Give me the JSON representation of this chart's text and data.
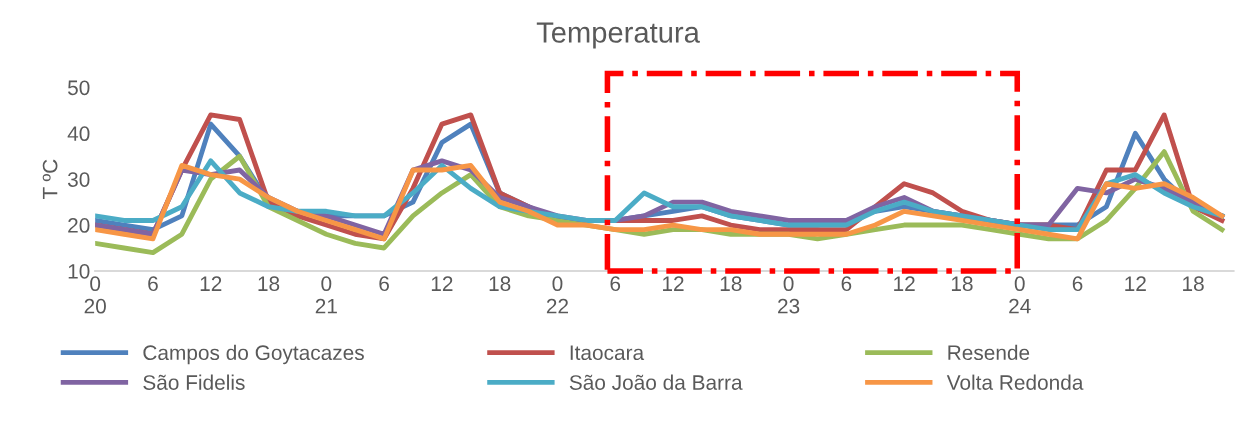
{
  "chart_data": {
    "type": "line",
    "title": "Temperatura",
    "ylabel": "T ºC",
    "categories": [
      "0\n20",
      null,
      "6",
      null,
      "12",
      null,
      "18",
      null,
      "0\n21",
      null,
      "6",
      null,
      "12",
      null,
      "18",
      null,
      "0\n22",
      null,
      "6",
      null,
      "12",
      null,
      "18",
      null,
      "0\n23",
      null,
      "6",
      null,
      "12",
      null,
      "18",
      null,
      "0\n24",
      null,
      "6",
      null,
      "12",
      null,
      "18",
      null
    ],
    "series": [
      {
        "name": "Campos do Goytacazes",
        "color": "#4f81bd",
        "values": [
          21,
          20,
          19,
          22,
          42,
          35,
          25,
          23,
          22,
          22,
          22,
          25,
          38,
          42,
          27,
          24,
          21,
          21,
          21,
          22,
          23,
          24,
          22,
          21,
          20,
          20,
          21,
          23,
          24,
          23,
          22,
          21,
          20,
          20,
          20,
          24,
          40,
          30,
          24,
          22
        ]
      },
      {
        "name": "Itaocara",
        "color": "#c0504d",
        "values": [
          20,
          19,
          18,
          32,
          44,
          43,
          25,
          22,
          20,
          18,
          17,
          28,
          42,
          44,
          27,
          24,
          21,
          21,
          21,
          21,
          21,
          22,
          20,
          19,
          19,
          19,
          19,
          24,
          29,
          27,
          23,
          21,
          20,
          20,
          19,
          32,
          32,
          44,
          24,
          21
        ]
      },
      {
        "name": "Resende",
        "color": "#9bbb59",
        "values": [
          16,
          15,
          14,
          18,
          30,
          35,
          24,
          21,
          18,
          16,
          15,
          22,
          27,
          31,
          24,
          22,
          21,
          20,
          19,
          18,
          19,
          19,
          18,
          18,
          18,
          17,
          18,
          19,
          20,
          20,
          20,
          19,
          18,
          17,
          17,
          21,
          28,
          36,
          23,
          19
        ]
      },
      {
        "name": "São Fidelis",
        "color": "#8064a2",
        "values": [
          20,
          19,
          18,
          32,
          31,
          32,
          26,
          23,
          22,
          20,
          18,
          32,
          34,
          32,
          26,
          24,
          22,
          21,
          21,
          22,
          25,
          25,
          23,
          22,
          21,
          21,
          21,
          24,
          26,
          23,
          22,
          21,
          20,
          20,
          28,
          27,
          30,
          28,
          25,
          22
        ]
      },
      {
        "name": "São João da Barra",
        "color": "#4bacc6",
        "values": [
          22,
          21,
          21,
          24,
          34,
          27,
          24,
          23,
          23,
          22,
          22,
          27,
          33,
          28,
          24,
          23,
          22,
          21,
          21,
          27,
          24,
          24,
          22,
          21,
          20,
          20,
          20,
          23,
          25,
          23,
          22,
          21,
          20,
          19,
          19,
          29,
          31,
          27,
          24,
          22
        ]
      },
      {
        "name": "Volta Redonda",
        "color": "#f79646",
        "values": [
          19,
          18,
          17,
          33,
          31,
          30,
          26,
          23,
          21,
          19,
          17,
          32,
          32,
          33,
          25,
          23,
          20,
          20,
          19,
          19,
          20,
          19,
          19,
          18,
          18,
          18,
          18,
          20,
          23,
          22,
          21,
          20,
          19,
          18,
          17,
          29,
          28,
          29,
          26,
          22
        ]
      }
    ],
    "ylim": [
      10,
      50
    ],
    "yticks": [
      10,
      20,
      30,
      40,
      50
    ],
    "grid": false,
    "legend": "bottom",
    "marker": "none",
    "line_style": "solid"
  }
}
